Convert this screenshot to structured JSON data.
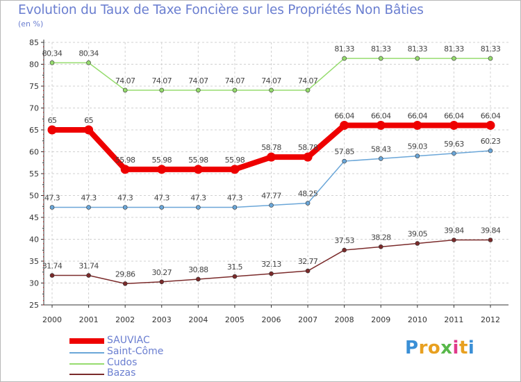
{
  "header": {
    "title": "Evolution du Taux de Taxe Foncière sur les Propriétés Non Bâties",
    "subtitle": "(en %)"
  },
  "chart_data": {
    "type": "line",
    "title": "Evolution du Taux de Taxe Foncière sur les Propriétés Non Bâties",
    "ylabel": "(en %)",
    "xlabel": "",
    "categories": [
      "2000",
      "2001",
      "2002",
      "2003",
      "2004",
      "2005",
      "2006",
      "2007",
      "2008",
      "2009",
      "2010",
      "2011",
      "2012"
    ],
    "ylim": [
      25,
      85
    ],
    "yticks": [
      25,
      30,
      35,
      40,
      45,
      50,
      55,
      60,
      65,
      70,
      75,
      80,
      85
    ],
    "grid": true,
    "legend_position": "bottom-left",
    "series": [
      {
        "name": "SAUVIAC",
        "color": "#ee0000",
        "labels": [
          "65",
          "65",
          "55.98",
          "55.98",
          "55.98",
          "55.98",
          "58.78",
          "58.78",
          "66.04",
          "66.04",
          "66.04",
          "66.04",
          "66.04"
        ],
        "values": [
          65,
          65,
          55.98,
          55.98,
          55.98,
          55.98,
          58.78,
          58.78,
          66.04,
          66.04,
          66.04,
          66.04,
          66.04
        ]
      },
      {
        "name": "Saint-Côme",
        "color": "#6aa6d8",
        "labels": [
          "47.3",
          "47.3",
          "47.3",
          "47.3",
          "47.3",
          "47.3",
          "47.77",
          "48.25",
          "57.85",
          "58.43",
          "59.03",
          "59.63",
          "60.23"
        ],
        "values": [
          47.3,
          47.3,
          47.3,
          47.3,
          47.3,
          47.3,
          47.77,
          48.25,
          57.85,
          58.43,
          59.03,
          59.63,
          60.23
        ]
      },
      {
        "name": "Cudos",
        "color": "#96dc6e",
        "labels": [
          "80.34",
          "80.34",
          "74.07",
          "74.07",
          "74.07",
          "74.07",
          "74.07",
          "74.07",
          "81.33",
          "81.33",
          "81.33",
          "81.33",
          "81.33"
        ],
        "values": [
          80.34,
          80.34,
          74.07,
          74.07,
          74.07,
          74.07,
          74.07,
          74.07,
          81.33,
          81.33,
          81.33,
          81.33,
          81.33
        ]
      },
      {
        "name": "Bazas",
        "color": "#7a2a2a",
        "labels": [
          "31.74",
          "31.74",
          "29.86",
          "30.27",
          "30.88",
          "31.5",
          "32.13",
          "32.77",
          "37.53",
          "38.28",
          "39.05",
          "39.84",
          "39.84"
        ],
        "values": [
          31.74,
          31.74,
          29.86,
          30.27,
          30.88,
          31.5,
          32.13,
          32.77,
          37.53,
          38.28,
          39.05,
          39.84,
          39.84
        ]
      }
    ]
  },
  "logo": {
    "letters": [
      "P",
      "r",
      "o",
      "x",
      "i",
      "t",
      "i"
    ],
    "colors": [
      "#3a8fd6",
      "#e8a020",
      "#e8a020",
      "#58b84a",
      "#e03a8a",
      "#e8a020",
      "#3a8fd6"
    ]
  }
}
